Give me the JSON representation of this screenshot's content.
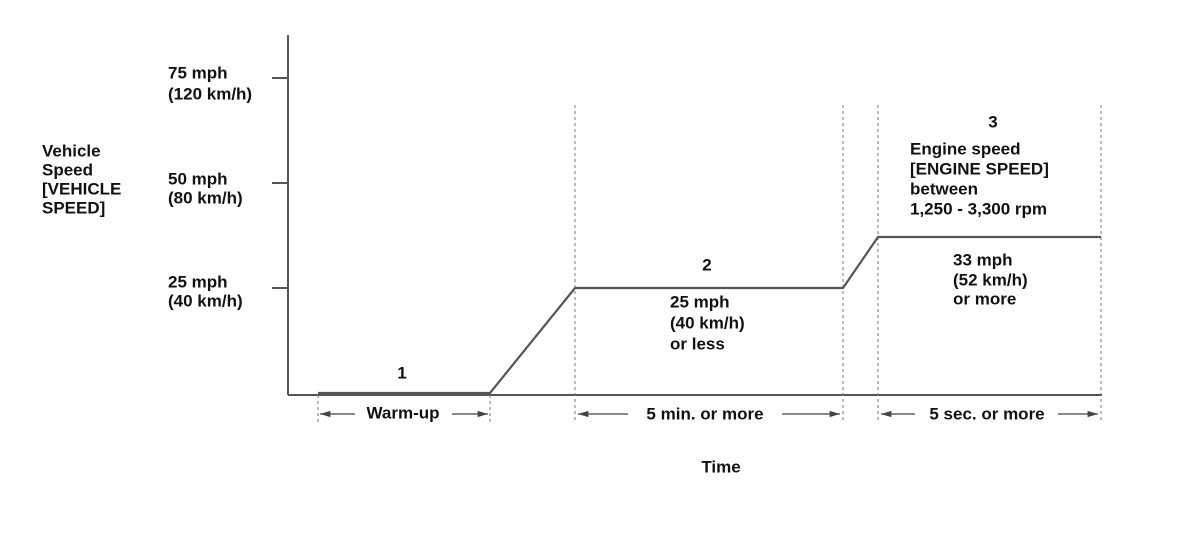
{
  "y_axis": {
    "label": [
      "Vehicle",
      "Speed",
      "[VEHICLE",
      "SPEED]"
    ],
    "ticks": [
      [
        "75 mph",
        "(120 km/h)"
      ],
      [
        "50 mph",
        "(80 km/h)"
      ],
      [
        "25 mph",
        "(40 km/h)"
      ]
    ]
  },
  "phases": [
    {
      "number": "1",
      "duration": "Warm-up"
    },
    {
      "number": "2",
      "condition": [
        "25 mph",
        "(40 km/h)",
        "or less"
      ],
      "duration": "5 min. or more"
    },
    {
      "number": "3",
      "note": [
        "Engine speed",
        "[ENGINE SPEED]",
        "between",
        "1,250 - 3,300 rpm"
      ],
      "condition": [
        "33 mph",
        "(52 km/h)",
        "or more"
      ],
      "duration": "5 sec. or more"
    }
  ],
  "x_axis": {
    "label": "Time"
  }
}
